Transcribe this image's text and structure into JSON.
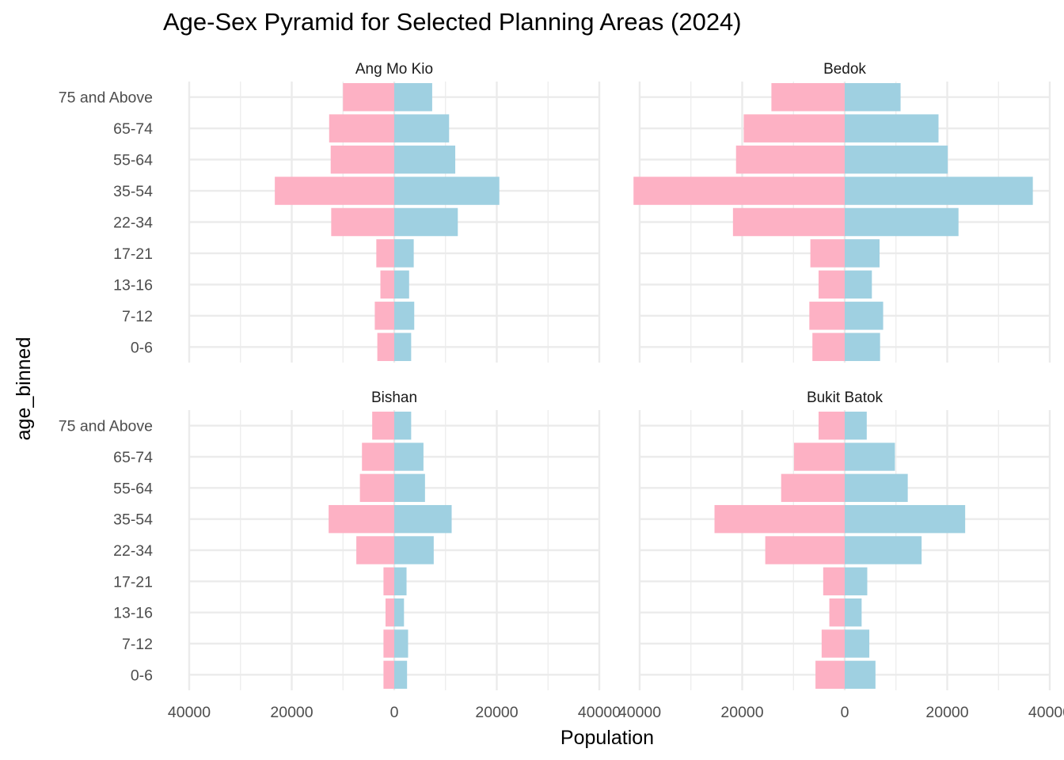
{
  "chart_data": {
    "type": "bar",
    "title": "Age-Sex Pyramid for Selected Planning Areas (2024)",
    "xlabel": "Population",
    "ylabel": "age_binned",
    "x_ticks": [
      "40000",
      "20000",
      "0",
      "20000",
      "40000"
    ],
    "xlim": [
      -40000,
      40000
    ],
    "categories": [
      "0-6",
      "7-12",
      "13-16",
      "17-21",
      "22-34",
      "35-54",
      "55-64",
      "65-74",
      "75 and Above"
    ],
    "series_colors": {
      "female": "#fdb1c4",
      "male": "#9fd0e1"
    },
    "grid": true,
    "legend": "none",
    "panels": [
      {
        "name": "Ang Mo Kio",
        "female": [
          3300,
          3800,
          2700,
          3500,
          12300,
          23300,
          12400,
          12700,
          10000
        ],
        "male": [
          3300,
          3900,
          2900,
          3800,
          12400,
          20500,
          11900,
          10700,
          7400
        ]
      },
      {
        "name": "Bedok",
        "female": [
          6300,
          6900,
          5100,
          6700,
          21800,
          41200,
          21200,
          19700,
          14300
        ],
        "male": [
          6900,
          7500,
          5300,
          6800,
          22200,
          36700,
          20100,
          18300,
          10900
        ]
      },
      {
        "name": "Bishan",
        "female": [
          2100,
          2100,
          1700,
          2100,
          7400,
          12800,
          6700,
          6300,
          4300
        ],
        "male": [
          2500,
          2700,
          1900,
          2400,
          7700,
          11200,
          6000,
          5700,
          3300
        ]
      },
      {
        "name": "Bukit Batok",
        "female": [
          5700,
          4500,
          3000,
          4200,
          15500,
          25400,
          12400,
          9900,
          5100
        ],
        "male": [
          6000,
          4800,
          3300,
          4400,
          15000,
          23500,
          12300,
          9800,
          4300
        ]
      }
    ]
  }
}
